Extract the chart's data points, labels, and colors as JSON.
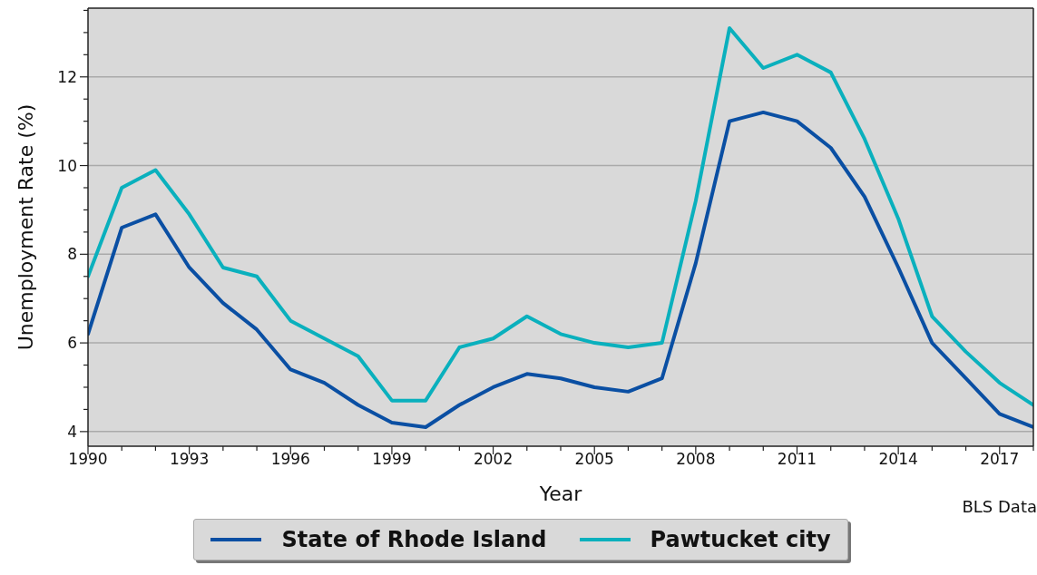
{
  "chart_data": {
    "type": "line",
    "xlabel": "Year",
    "ylabel": "Unemployment Rate (%)",
    "annotations": [
      "BLS Data"
    ],
    "x": [
      1990,
      1991,
      1992,
      1993,
      1994,
      1995,
      1996,
      1997,
      1998,
      1999,
      2000,
      2001,
      2002,
      2003,
      2004,
      2005,
      2006,
      2007,
      2008,
      2009,
      2010,
      2011,
      2012,
      2013,
      2014,
      2015,
      2016,
      2017,
      2018
    ],
    "series": [
      {
        "name": "State of Rhode Island",
        "color": "#0a4fa3",
        "values": [
          6.2,
          8.6,
          8.9,
          7.7,
          6.9,
          6.3,
          5.4,
          5.1,
          4.6,
          4.2,
          4.1,
          4.6,
          5.0,
          5.3,
          5.2,
          5.0,
          4.9,
          5.2,
          7.8,
          11.0,
          11.2,
          11.0,
          10.4,
          9.3,
          7.7,
          6.0,
          5.2,
          4.4,
          4.1
        ]
      },
      {
        "name": "Pawtucket city",
        "color": "#0ab0bd",
        "values": [
          7.5,
          9.5,
          9.9,
          8.9,
          7.7,
          7.5,
          6.5,
          6.1,
          5.7,
          4.7,
          4.7,
          5.9,
          6.1,
          6.6,
          6.2,
          6.0,
          5.9,
          6.0,
          9.2,
          13.1,
          12.2,
          12.5,
          12.1,
          10.6,
          8.8,
          6.6,
          5.8,
          5.1,
          4.6
        ]
      }
    ],
    "xlim": [
      1990,
      2018
    ],
    "xticks": [
      1990,
      {
        "value": 1991,
        "label": null
      },
      {
        "value": 1992,
        "label": null
      },
      1993,
      {
        "value": 1994,
        "label": null
      },
      {
        "value": 1995,
        "label": null
      },
      1996,
      {
        "value": 1997,
        "label": null
      },
      {
        "value": 1998,
        "label": null
      },
      1999,
      {
        "value": 2000,
        "label": null
      },
      {
        "value": 2001,
        "label": null
      },
      2002,
      {
        "value": 2003,
        "label": null
      },
      {
        "value": 2004,
        "label": null
      },
      2005,
      {
        "value": 2006,
        "label": null
      },
      {
        "value": 2007,
        "label": null
      },
      2008,
      {
        "value": 2009,
        "label": null
      },
      {
        "value": 2010,
        "label": null
      },
      2011,
      {
        "value": 2012,
        "label": null
      },
      {
        "value": 2013,
        "label": null
      },
      2014,
      {
        "value": 2015,
        "label": null
      },
      {
        "value": 2016,
        "label": null
      },
      2017,
      {
        "value": 2018,
        "label": null
      }
    ],
    "ylim": [
      3.67,
      13.55
    ],
    "yticks": [
      4,
      {
        "value": 4.5,
        "label": null
      },
      {
        "value": 5,
        "label": null
      },
      {
        "value": 5.5,
        "label": null
      },
      6,
      {
        "value": 6.5,
        "label": null
      },
      {
        "value": 7,
        "label": null
      },
      {
        "value": 7.5,
        "label": null
      },
      8,
      {
        "value": 8.5,
        "label": null
      },
      {
        "value": 9,
        "label": null
      },
      {
        "value": 9.5,
        "label": null
      },
      10,
      {
        "value": 10.5,
        "label": null
      },
      {
        "value": 11,
        "label": null
      },
      {
        "value": 11.5,
        "label": null
      },
      12,
      {
        "value": 12.5,
        "label": null
      },
      {
        "value": 13,
        "label": null
      },
      {
        "value": 13.5,
        "label": null
      }
    ],
    "grid": "y",
    "legend": "bottom",
    "marker": "none",
    "line_style": "solid"
  }
}
